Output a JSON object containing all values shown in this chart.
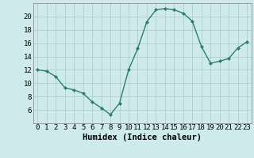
{
  "x": [
    0,
    1,
    2,
    3,
    4,
    5,
    6,
    7,
    8,
    9,
    10,
    11,
    12,
    13,
    14,
    15,
    16,
    17,
    18,
    19,
    20,
    21,
    22,
    23
  ],
  "y": [
    12,
    11.8,
    11.0,
    9.3,
    9.0,
    8.5,
    7.2,
    6.3,
    5.3,
    7.0,
    12.0,
    15.2,
    19.2,
    21.0,
    21.2,
    21.0,
    20.5,
    19.3,
    15.5,
    13.0,
    13.3,
    13.7,
    15.3,
    16.2
  ],
  "line_color": "#2e7d6e",
  "marker": "D",
  "marker_size": 2.0,
  "bg_color": "#ceeaea",
  "grid_color": "#aecece",
  "xlabel": "Humidex (Indice chaleur)",
  "ylim": [
    4,
    22
  ],
  "yticks": [
    6,
    8,
    10,
    12,
    14,
    16,
    18,
    20
  ],
  "xlim": [
    -0.5,
    23.5
  ],
  "xlabel_fontsize": 7.5,
  "tick_fontsize": 6.5
}
